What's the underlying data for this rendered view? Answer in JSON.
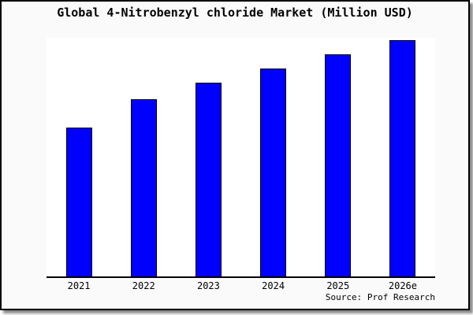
{
  "window": {
    "title": "Global 4-Nitrobenzyl chloride Market (Million USD)",
    "source": "Source: Prof Research"
  },
  "colors": {
    "bar_fill": "#0000ff",
    "bar_border": "#000000",
    "frame_background": "#fafafa",
    "plot_background": "#ffffff",
    "axis": "#000000",
    "text": "#000000",
    "frame_border": "#000000",
    "drop_shadow": "#8a8a8a"
  },
  "chart_data": {
    "type": "bar",
    "title": "Global 4-Nitrobenzyl chloride Market (Million USD)",
    "categories": [
      "2021",
      "2022",
      "2023",
      "2024",
      "2025",
      "2026e"
    ],
    "values": [
      63,
      75,
      82,
      88,
      94,
      100
    ],
    "value_scale": "relative bar height, tallest bar (2026e) = 100; chart shows no y-axis or value labels",
    "xlabel": "",
    "ylabel": "",
    "ylim": [
      0,
      101
    ],
    "grid": false,
    "legend": null,
    "source": "Source: Prof Research"
  }
}
